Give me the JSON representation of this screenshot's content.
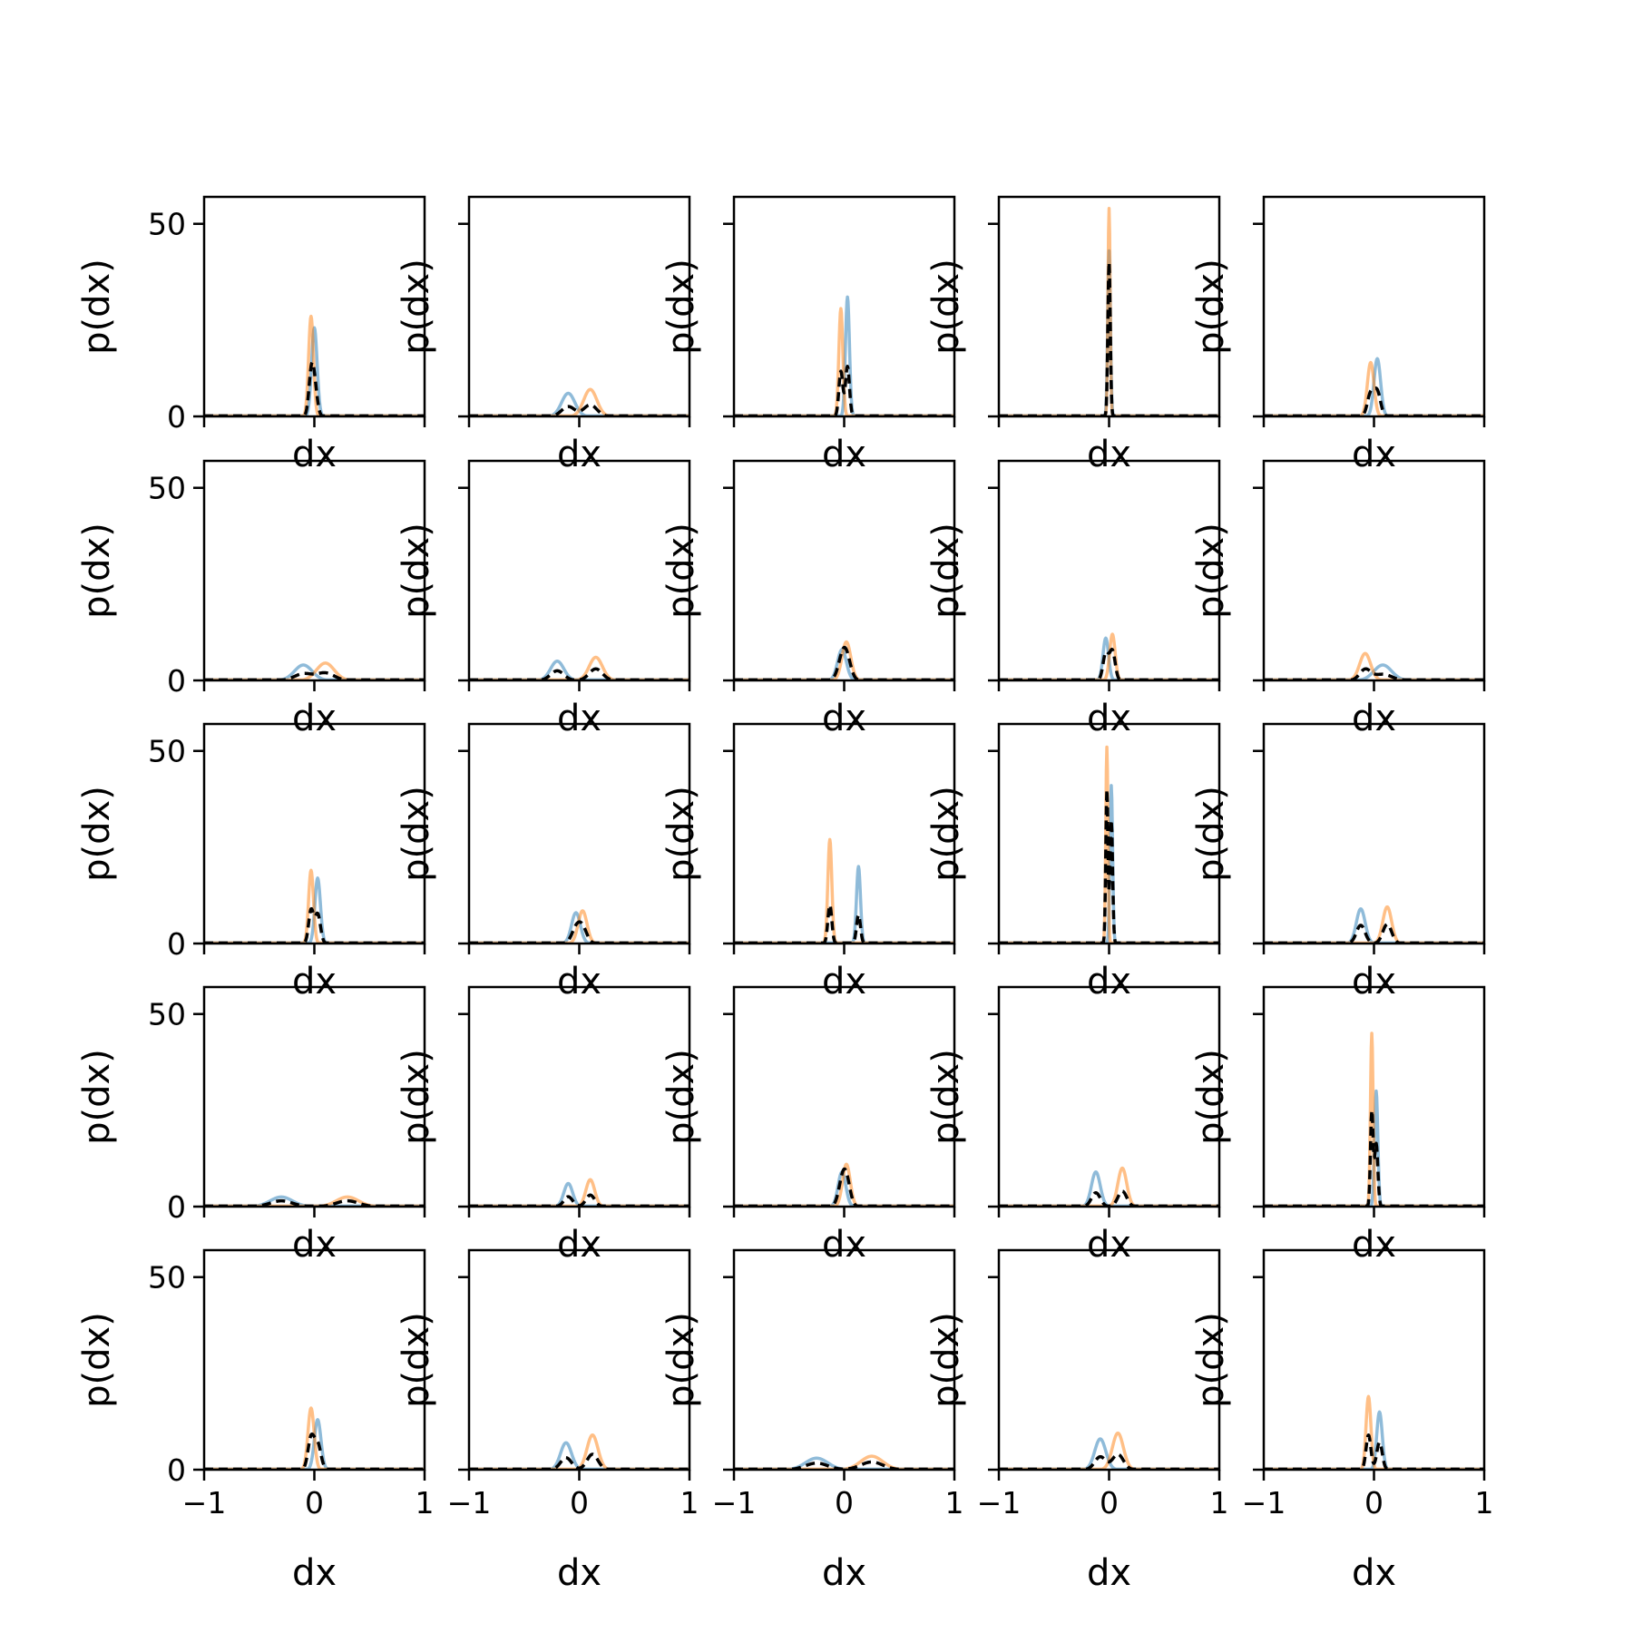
{
  "chart_data": {
    "type": "line",
    "layout": "5x5 grid of density plots sharing axes",
    "xlabel": "dx",
    "ylabel": "p(dx)",
    "xlim": [
      -1,
      1
    ],
    "ylim": [
      0,
      57
    ],
    "xticks": [
      -1,
      0,
      1
    ],
    "yticks": [
      0,
      50
    ],
    "xtick_labels": [
      "−1",
      "0",
      "1"
    ],
    "ytick_labels": [
      "0",
      "50"
    ],
    "series_styles": [
      {
        "key": "blue",
        "color": "#1f77b4",
        "opacity": 0.5,
        "style": "solid"
      },
      {
        "key": "orange",
        "color": "#ff7f0e",
        "opacity": 0.5,
        "style": "solid"
      },
      {
        "key": "black",
        "color": "#000000",
        "opacity": 1,
        "style": "dashed"
      }
    ],
    "panels": [
      {
        "row": 0,
        "col": 0,
        "blue": {
          "center": 0.0,
          "peak": 23,
          "sigma": 0.025
        },
        "orange": {
          "center": -0.03,
          "peak": 26,
          "sigma": 0.022
        },
        "black_peak": 13
      },
      {
        "row": 0,
        "col": 1,
        "blue": {
          "center": -0.1,
          "peak": 6,
          "sigma": 0.06
        },
        "orange": {
          "center": 0.1,
          "peak": 7,
          "sigma": 0.06
        },
        "black_peak": 3
      },
      {
        "row": 0,
        "col": 2,
        "blue": {
          "center": 0.03,
          "peak": 31,
          "sigma": 0.018
        },
        "orange": {
          "center": -0.03,
          "peak": 28,
          "sigma": 0.018
        },
        "black_peak": 13
      },
      {
        "row": 0,
        "col": 3,
        "blue": {
          "center": 0.0,
          "peak": 43,
          "sigma": 0.012
        },
        "orange": {
          "center": 0.0,
          "peak": 54,
          "sigma": 0.01
        },
        "black_peak": 40
      },
      {
        "row": 0,
        "col": 4,
        "blue": {
          "center": 0.03,
          "peak": 15,
          "sigma": 0.03
        },
        "orange": {
          "center": -0.03,
          "peak": 14,
          "sigma": 0.03
        },
        "black_peak": 7
      },
      {
        "row": 1,
        "col": 0,
        "blue": {
          "center": -0.1,
          "peak": 4,
          "sigma": 0.08
        },
        "orange": {
          "center": 0.1,
          "peak": 4.5,
          "sigma": 0.08
        },
        "black_peak": 2
      },
      {
        "row": 1,
        "col": 1,
        "blue": {
          "center": -0.2,
          "peak": 5,
          "sigma": 0.06
        },
        "orange": {
          "center": 0.15,
          "peak": 6,
          "sigma": 0.06
        },
        "black_peak": 3
      },
      {
        "row": 1,
        "col": 2,
        "blue": {
          "center": -0.02,
          "peak": 8,
          "sigma": 0.04
        },
        "orange": {
          "center": 0.02,
          "peak": 10,
          "sigma": 0.04
        },
        "black_peak": 8
      },
      {
        "row": 1,
        "col": 3,
        "blue": {
          "center": -0.03,
          "peak": 11,
          "sigma": 0.025
        },
        "orange": {
          "center": 0.03,
          "peak": 12,
          "sigma": 0.025
        },
        "black_peak": 8
      },
      {
        "row": 1,
        "col": 4,
        "blue": {
          "center": 0.08,
          "peak": 4,
          "sigma": 0.08
        },
        "orange": {
          "center": -0.08,
          "peak": 7,
          "sigma": 0.05
        },
        "black_peak": 3
      },
      {
        "row": 2,
        "col": 0,
        "blue": {
          "center": 0.03,
          "peak": 17,
          "sigma": 0.025
        },
        "orange": {
          "center": -0.03,
          "peak": 19,
          "sigma": 0.022
        },
        "black_peak": 9
      },
      {
        "row": 2,
        "col": 1,
        "blue": {
          "center": -0.03,
          "peak": 8,
          "sigma": 0.04
        },
        "orange": {
          "center": 0.03,
          "peak": 8.5,
          "sigma": 0.04
        },
        "black_peak": 5
      },
      {
        "row": 2,
        "col": 2,
        "blue": {
          "center": 0.13,
          "peak": 20,
          "sigma": 0.018
        },
        "orange": {
          "center": -0.13,
          "peak": 27,
          "sigma": 0.018
        },
        "black_peak": 10
      },
      {
        "row": 2,
        "col": 3,
        "blue": {
          "center": 0.02,
          "peak": 41,
          "sigma": 0.012
        },
        "orange": {
          "center": -0.02,
          "peak": 51,
          "sigma": 0.01
        },
        "black_peak": 40
      },
      {
        "row": 2,
        "col": 4,
        "blue": {
          "center": -0.12,
          "peak": 9,
          "sigma": 0.04
        },
        "orange": {
          "center": 0.12,
          "peak": 9.5,
          "sigma": 0.04
        },
        "black_peak": 5
      },
      {
        "row": 3,
        "col": 0,
        "blue": {
          "center": -0.3,
          "peak": 2.5,
          "sigma": 0.1
        },
        "orange": {
          "center": 0.3,
          "peak": 2.5,
          "sigma": 0.1
        },
        "black_peak": 1.5
      },
      {
        "row": 3,
        "col": 1,
        "blue": {
          "center": -0.1,
          "peak": 6,
          "sigma": 0.04
        },
        "orange": {
          "center": 0.1,
          "peak": 7,
          "sigma": 0.04
        },
        "black_peak": 3
      },
      {
        "row": 3,
        "col": 2,
        "blue": {
          "center": -0.02,
          "peak": 9,
          "sigma": 0.035
        },
        "orange": {
          "center": 0.02,
          "peak": 11,
          "sigma": 0.035
        },
        "black_peak": 9
      },
      {
        "row": 3,
        "col": 3,
        "blue": {
          "center": -0.12,
          "peak": 9,
          "sigma": 0.04
        },
        "orange": {
          "center": 0.12,
          "peak": 10,
          "sigma": 0.04
        },
        "black_peak": 4
      },
      {
        "row": 3,
        "col": 4,
        "blue": {
          "center": 0.02,
          "peak": 30,
          "sigma": 0.015
        },
        "orange": {
          "center": -0.02,
          "peak": 45,
          "sigma": 0.012
        },
        "black_peak": 25
      },
      {
        "row": 4,
        "col": 0,
        "blue": {
          "center": 0.03,
          "peak": 13,
          "sigma": 0.03
        },
        "orange": {
          "center": -0.03,
          "peak": 16,
          "sigma": 0.028
        },
        "black_peak": 9
      },
      {
        "row": 4,
        "col": 1,
        "blue": {
          "center": -0.12,
          "peak": 7,
          "sigma": 0.05
        },
        "orange": {
          "center": 0.12,
          "peak": 9,
          "sigma": 0.05
        },
        "black_peak": 4
      },
      {
        "row": 4,
        "col": 2,
        "blue": {
          "center": -0.25,
          "peak": 3,
          "sigma": 0.1
        },
        "orange": {
          "center": 0.25,
          "peak": 3.5,
          "sigma": 0.1
        },
        "black_peak": 2
      },
      {
        "row": 4,
        "col": 3,
        "blue": {
          "center": -0.08,
          "peak": 8,
          "sigma": 0.05
        },
        "orange": {
          "center": 0.08,
          "peak": 9.5,
          "sigma": 0.05
        },
        "black_peak": 4
      },
      {
        "row": 4,
        "col": 4,
        "blue": {
          "center": 0.05,
          "peak": 15,
          "sigma": 0.025
        },
        "orange": {
          "center": -0.05,
          "peak": 19,
          "sigma": 0.022
        },
        "black_peak": 9
      }
    ]
  }
}
